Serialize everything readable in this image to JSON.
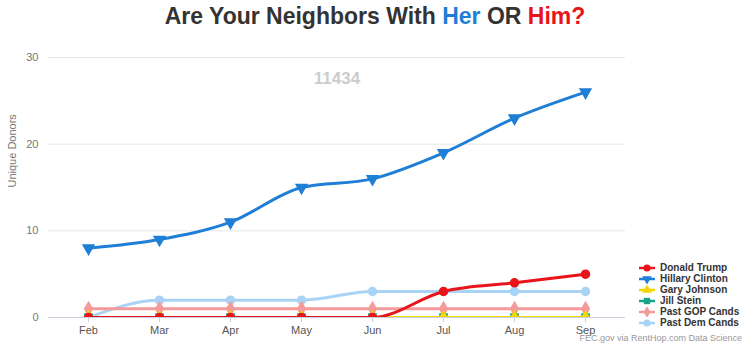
{
  "chart_data": {
    "type": "line",
    "title": "Are Your Neighbors With Her OR Him?",
    "annotation": "11434",
    "ylabel": "Unique Donors",
    "source": "FEC.gov via RentHop.com Data Science",
    "categories": [
      "Feb",
      "Mar",
      "Apr",
      "May",
      "Jun",
      "Jul",
      "Aug",
      "Sep"
    ],
    "series": [
      {
        "name": "Donald Trump",
        "color": "#e8141c",
        "marker": "circle",
        "values": [
          0,
          0,
          0,
          0,
          0,
          3,
          4,
          5
        ]
      },
      {
        "name": "Hillary Clinton",
        "color": "#1f7fd6",
        "marker": "triangle-down",
        "values": [
          8,
          9,
          11,
          15,
          16,
          19,
          23,
          26
        ]
      },
      {
        "name": "Gary Johnson",
        "color": "#f2d600",
        "marker": "triangle",
        "values": [
          0,
          0,
          0,
          0,
          0,
          0,
          0,
          0
        ]
      },
      {
        "name": "Jill Stein",
        "color": "#1aa38a",
        "marker": "square",
        "values": [
          0,
          0,
          0,
          0,
          0,
          0,
          0,
          0
        ]
      },
      {
        "name": "Past GOP Cands",
        "color": "#f49a9a",
        "marker": "diamond",
        "values": [
          1,
          1,
          1,
          1,
          1,
          1,
          1,
          1
        ]
      },
      {
        "name": "Past Dem Cands",
        "color": "#a9d3f5",
        "marker": "circle",
        "values": [
          0,
          2,
          2,
          2,
          3,
          3,
          3,
          3
        ]
      }
    ],
    "ylim": [
      0,
      30
    ],
    "yticks": [
      0,
      10,
      20,
      30
    ],
    "grid": true,
    "legend": "right",
    "line_style": "smooth"
  }
}
